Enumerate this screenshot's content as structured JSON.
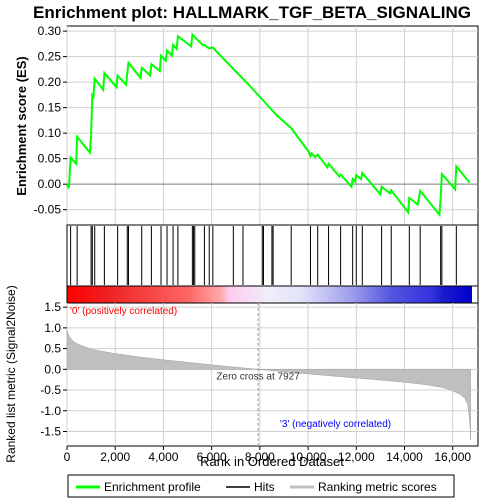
{
  "chart_data": {
    "type": "line",
    "title": "Enrichment plot: HALLMARK_TGF_BETA_SIGNALING",
    "top_panel": {
      "ylabel": "Enrichment score (ES)",
      "ylim": [
        -0.08,
        0.31
      ],
      "yticks": [
        -0.05,
        0.0,
        0.05,
        0.1,
        0.15,
        0.2,
        0.25,
        0.3
      ],
      "ytick_labels": [
        "-0.05",
        "0.00",
        "0.05",
        "0.10",
        "0.15",
        "0.20",
        "0.25",
        "0.30"
      ],
      "series": [
        {
          "name": "Enrichment profile",
          "color": "#00ff00",
          "points": [
            [
              0,
              0
            ],
            [
              80,
              -0.008
            ],
            [
              150,
              0.052
            ],
            [
              380,
              0.04
            ],
            [
              420,
              0.093
            ],
            [
              950,
              0.062
            ],
            [
              1000,
              0.095
            ],
            [
              1050,
              0.175
            ],
            [
              1100,
              0.172
            ],
            [
              1150,
              0.207
            ],
            [
              1500,
              0.185
            ],
            [
              1550,
              0.218
            ],
            [
              2050,
              0.19
            ],
            [
              2100,
              0.213
            ],
            [
              2450,
              0.195
            ],
            [
              2500,
              0.218
            ],
            [
              2550,
              0.238
            ],
            [
              3050,
              0.208
            ],
            [
              3100,
              0.228
            ],
            [
              3450,
              0.213
            ],
            [
              3500,
              0.235
            ],
            [
              3850,
              0.222
            ],
            [
              3900,
              0.252
            ],
            [
              4100,
              0.242
            ],
            [
              4150,
              0.262
            ],
            [
              4350,
              0.252
            ],
            [
              4400,
              0.273
            ],
            [
              4550,
              0.265
            ],
            [
              4600,
              0.29
            ],
            [
              5150,
              0.27
            ],
            [
              5200,
              0.293
            ],
            [
              5650,
              0.272
            ],
            [
              5700,
              0.273
            ],
            [
              5900,
              0.266
            ],
            [
              6050,
              0.268
            ],
            [
              6200,
              0.26
            ],
            [
              6900,
              0.226
            ],
            [
              7500,
              0.197
            ],
            [
              8100,
              0.166
            ],
            [
              8700,
              0.135
            ],
            [
              9300,
              0.11
            ],
            [
              10050,
              0.062
            ],
            [
              10100,
              0.055
            ],
            [
              10150,
              0.06
            ],
            [
              10300,
              0.053
            ],
            [
              10400,
              0.058
            ],
            [
              10800,
              0.033
            ],
            [
              10850,
              0.04
            ],
            [
              11300,
              0.015
            ],
            [
              11350,
              0.019
            ],
            [
              11800,
              -0.005
            ],
            [
              11850,
              0.01
            ],
            [
              11950,
              0.005
            ],
            [
              12000,
              0.018
            ],
            [
              12200,
              0.01
            ],
            [
              12250,
              0.022
            ],
            [
              13000,
              -0.02
            ],
            [
              13050,
              -0.005
            ],
            [
              13400,
              -0.018
            ],
            [
              13450,
              -0.012
            ],
            [
              14150,
              -0.055
            ],
            [
              14200,
              -0.027
            ],
            [
              14550,
              -0.04
            ],
            [
              14650,
              -0.013
            ],
            [
              15450,
              -0.06
            ],
            [
              15500,
              -0.025
            ],
            [
              15550,
              0.02
            ],
            [
              16100,
              -0.01
            ],
            [
              16150,
              0.035
            ],
            [
              16700,
              0.003
            ]
          ]
        }
      ]
    },
    "hits_panel": {
      "series_name": "Hits",
      "hit_ranks": [
        150,
        420,
        1000,
        1050,
        1150,
        1550,
        2100,
        2500,
        2550,
        3100,
        3500,
        3900,
        4150,
        4400,
        4600,
        5200,
        5250,
        5300,
        5700,
        5900,
        6050,
        6900,
        7300,
        8100,
        8150,
        8500,
        8550,
        9300,
        10100,
        10400,
        10850,
        11350,
        11850,
        12000,
        12250,
        13050,
        13450,
        14200,
        14650,
        15500,
        15550,
        16150
      ]
    },
    "bottom_panel": {
      "ylabel": "Ranked list metric (Signal2Noise)",
      "xlabel": "Rank in Ordered Dataset",
      "ylim": [
        -1.85,
        1.6
      ],
      "yticks": [
        -1.5,
        -1.0,
        -0.5,
        0.0,
        0.5,
        1.0,
        1.5
      ],
      "ytick_labels": [
        "-1.5",
        "-1.0",
        "-0.5",
        "0.0",
        "0.5",
        "1.0",
        "1.5"
      ],
      "series_name": "Ranking metric scores",
      "metric_curve": [
        [
          0,
          0.95
        ],
        [
          50,
          0.85
        ],
        [
          150,
          0.75
        ],
        [
          300,
          0.66
        ],
        [
          600,
          0.57
        ],
        [
          1000,
          0.49
        ],
        [
          1500,
          0.43
        ],
        [
          2000,
          0.38
        ],
        [
          3000,
          0.3
        ],
        [
          4000,
          0.23
        ],
        [
          5000,
          0.17
        ],
        [
          6000,
          0.11
        ],
        [
          7000,
          0.05
        ],
        [
          7927,
          0.0
        ],
        [
          9000,
          -0.06
        ],
        [
          10000,
          -0.11
        ],
        [
          11000,
          -0.16
        ],
        [
          12000,
          -0.21
        ],
        [
          13000,
          -0.26
        ],
        [
          14000,
          -0.31
        ],
        [
          15000,
          -0.38
        ],
        [
          15600,
          -0.44
        ],
        [
          16000,
          -0.52
        ],
        [
          16300,
          -0.6
        ],
        [
          16500,
          -0.7
        ],
        [
          16620,
          -0.85
        ],
        [
          16680,
          -1.1
        ],
        [
          16720,
          -1.4
        ],
        [
          16740,
          -1.7
        ]
      ],
      "zero_cross_label": "Zero cross at 7927",
      "zero_cross_rank": 7927,
      "positive_label": "'0' (positively correlated)",
      "negative_label": "'3' (negatively correlated)"
    },
    "xlim": [
      0,
      16800
    ],
    "xticks": [
      0,
      2000,
      4000,
      6000,
      8000,
      10000,
      12000,
      14000,
      16000
    ],
    "xtick_labels": [
      "0",
      "2,000",
      "4,000",
      "6,000",
      "8,000",
      "10,000",
      "12,000",
      "14,000",
      "16,000"
    ],
    "legend": {
      "placement": "bottom",
      "entries": [
        {
          "label": "Enrichment profile",
          "color": "#00ff00"
        },
        {
          "label": "Hits",
          "color": "#000000"
        },
        {
          "label": "Ranking metric scores",
          "color": "#c0c0c0"
        }
      ]
    },
    "colors": {
      "positive": "#dd0000",
      "negative": "#0000cc",
      "positive_label_color": "#ff0000",
      "negative_label_color": "#0000ff",
      "grid": "#c8c8c8",
      "metric_fill": "#bfbfbf"
    }
  }
}
